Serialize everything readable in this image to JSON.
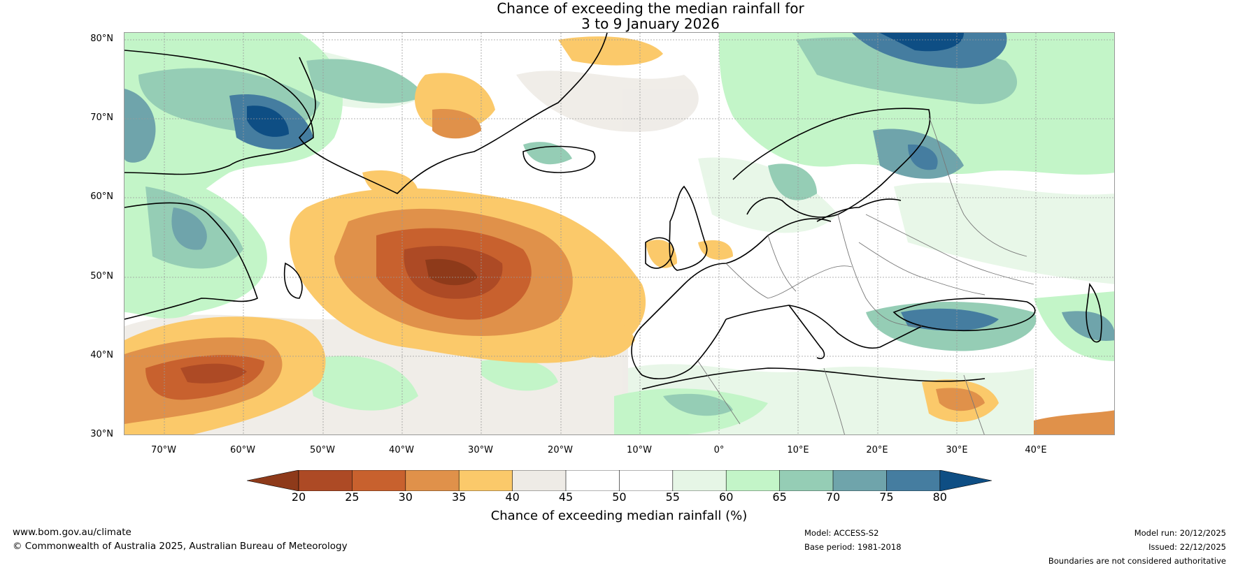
{
  "title_line1": "Chance of exceeding the median rainfall for",
  "title_line2": "3 to 9 January 2026",
  "lat_labels": [
    "80°N",
    "70°N",
    "60°N",
    "50°N",
    "40°N",
    "30°N"
  ],
  "lon_labels": [
    "70°W",
    "60°W",
    "50°W",
    "40°W",
    "30°W",
    "20°W",
    "10°W",
    "0°",
    "10°E",
    "20°E",
    "30°E",
    "40°E"
  ],
  "colorbar": {
    "ticks": [
      "20",
      "25",
      "30",
      "35",
      "40",
      "45",
      "50",
      "55",
      "60",
      "65",
      "70",
      "75",
      "80"
    ],
    "colors": [
      "#8e3a1a",
      "#ad4a25",
      "#c8612e",
      "#e0914a",
      "#fbc96a",
      "#eeebe6",
      "#ffffff",
      "#ffffff",
      "#e6f6e6",
      "#c3f5c8",
      "#95cdb5",
      "#6fa4ab",
      "#457da0",
      "#0e4e84"
    ],
    "title": "Chance of exceeding median rainfall (%)"
  },
  "footer": {
    "website": "www.bom.gov.au/climate",
    "copyright": "© Commonwealth of Australia 2025, Australian Bureau of Meteorology",
    "model": "Model: ACCESS-S2",
    "base_period": "Base period: 1981-2018",
    "model_run": "Model run: 20/12/2025",
    "issued": "Issued: 22/12/2025",
    "disclaimer": "Boundaries are not considered authoritative"
  }
}
